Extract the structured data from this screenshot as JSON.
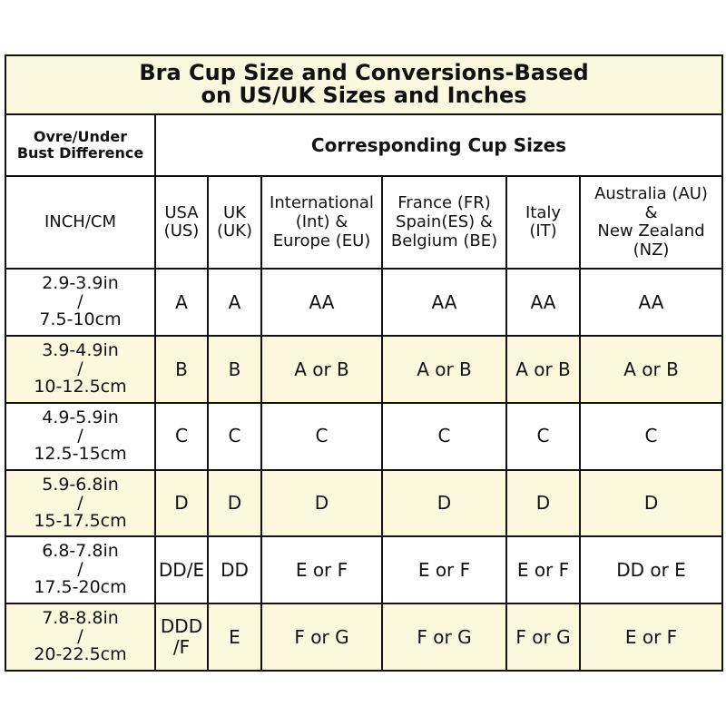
{
  "title": [
    "Bra Cup Size and Conversions-Based",
    "on US/UK Sizes and Inches"
  ],
  "header": {
    "left": [
      "Ovre/Under",
      "Bust Difference"
    ],
    "right": "Corresponding Cup Sizes"
  },
  "columns": [
    [
      "INCH/CM"
    ],
    [
      "USA",
      "(US)"
    ],
    [
      "UK",
      "(UK)"
    ],
    [
      "International",
      "(Int) &",
      "Europe (EU)"
    ],
    [
      "France (FR)",
      "Spain(ES) &",
      "Belgium (BE)"
    ],
    [
      "Italy",
      "(IT)"
    ],
    [
      "Australia (AU)",
      "&",
      "New Zealand",
      "(NZ)"
    ]
  ],
  "rows": [
    {
      "range": [
        "2.9-3.9in",
        "/",
        "7.5-10cm"
      ],
      "cells": [
        "A",
        "A",
        "AA",
        "AA",
        "AA",
        "AA"
      ]
    },
    {
      "range": [
        "3.9-4.9in",
        "/",
        "10-12.5cm"
      ],
      "cells": [
        "B",
        "B",
        "A or B",
        "A or B",
        "A or B",
        "A or B"
      ]
    },
    {
      "range": [
        "4.9-5.9in",
        "/",
        "12.5-15cm"
      ],
      "cells": [
        "C",
        "C",
        "C",
        "C",
        "C",
        "C"
      ]
    },
    {
      "range": [
        "5.9-6.8in",
        "/",
        "15-17.5cm"
      ],
      "cells": [
        "D",
        "D",
        "D",
        "D",
        "D",
        "D"
      ]
    },
    {
      "range": [
        "6.8-7.8in",
        "/",
        "17.5-20cm"
      ],
      "cells": [
        "DD/E",
        "DD",
        "E or F",
        "E or F",
        "E or F",
        "DD or E"
      ]
    },
    {
      "range": [
        "7.8-8.8in",
        "/",
        "20-22.5cm"
      ],
      "cells": [
        "DDD\n/F",
        "E",
        "F or G",
        "F or G",
        "F or G",
        "E or F"
      ]
    }
  ],
  "colors": {
    "highlight": "#fcf8dd",
    "border": "#111111"
  }
}
